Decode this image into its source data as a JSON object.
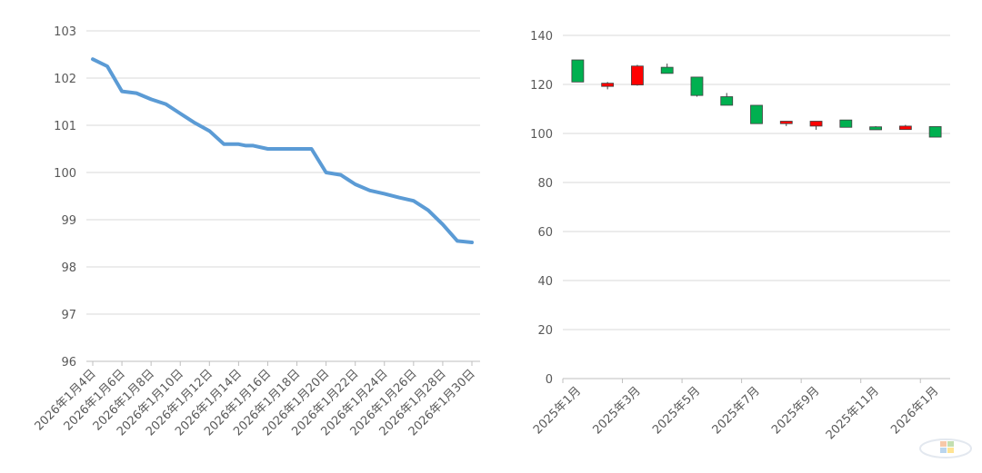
{
  "chart_data": [
    {
      "type": "line",
      "title": "",
      "xlabel": "",
      "ylabel": "",
      "ylim": [
        96,
        103
      ],
      "y_ticks": [
        "96",
        "97",
        "98",
        "99",
        "100",
        "101",
        "102",
        "103"
      ],
      "x_tick_labels": [
        "2026年1月4日",
        "2026年1月6日",
        "2026年1月8日",
        "2026年1月10日",
        "2026年1月12日",
        "2026年1月14日",
        "2026年1月16日",
        "2026年1月18日",
        "2026年1月20日",
        "2026年1月22日",
        "2026年1月24日",
        "2026年1月26日",
        "2026年1月28日",
        "2026年1月30日"
      ],
      "series": [
        {
          "name": "",
          "color": "#5B9BD5",
          "x_days": [
            4,
            5,
            6,
            7,
            8,
            9,
            10,
            11,
            12,
            13,
            14,
            14.5,
            15,
            16,
            17,
            18,
            19,
            20,
            21,
            22,
            23,
            24,
            25,
            26,
            27,
            28,
            29,
            30
          ],
          "values": [
            102.4,
            102.25,
            101.72,
            101.68,
            101.55,
            101.45,
            101.25,
            101.05,
            100.88,
            100.6,
            100.6,
            100.57,
            100.57,
            100.5,
            100.5,
            100.5,
            100.5,
            100.0,
            99.95,
            99.75,
            99.62,
            99.55,
            99.47,
            99.4,
            99.2,
            98.9,
            98.55,
            98.52
          ]
        }
      ]
    },
    {
      "type": "candlestick",
      "title": "",
      "xlabel": "",
      "ylabel": "",
      "ylim": [
        0,
        140
      ],
      "y_ticks": [
        "0",
        "20",
        "40",
        "60",
        "80",
        "100",
        "120",
        "140"
      ],
      "x_tick_labels": [
        "2025年1月",
        "2025年3月",
        "2025年5月",
        "2025年7月",
        "2025年9月",
        "2025年11月",
        "2026年1月"
      ],
      "up_color": "#00B050",
      "down_color": "#FF0000",
      "categories": [
        "2025年1月",
        "2025年2月",
        "2025年3月",
        "2025年4月",
        "2025年5月",
        "2025年6月",
        "2025年7月",
        "2025年8月",
        "2025年9月",
        "2025年10月",
        "2025年11月",
        "2025年12月",
        "2026年1月"
      ],
      "open": [
        121,
        120.5,
        127.5,
        124.5,
        115.5,
        111.5,
        104,
        105,
        105,
        102.5,
        101.5,
        103,
        98.5
      ],
      "close": [
        130,
        119.2,
        119.8,
        127.0,
        123.0,
        115.0,
        111.5,
        104.0,
        103.0,
        105.5,
        102.7,
        101.6,
        102.8
      ],
      "high": [
        130,
        121,
        128,
        128.5,
        123,
        116.5,
        111.5,
        105,
        105,
        105.5,
        103,
        103.5,
        102.8
      ],
      "low": [
        121,
        118,
        119.5,
        124.5,
        115,
        111.5,
        104,
        103,
        101.5,
        102.5,
        101.5,
        101.5,
        98.5
      ]
    }
  ]
}
